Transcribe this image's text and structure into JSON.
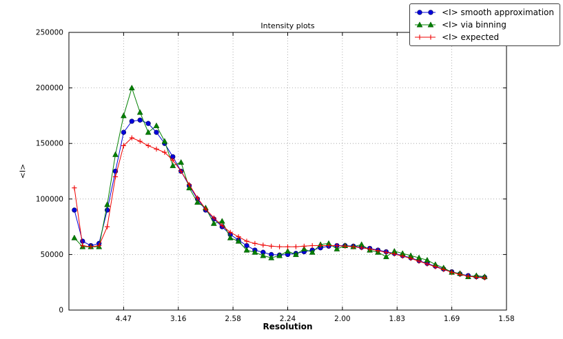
{
  "figure": {
    "background": "#ffffff",
    "frame_color": "#000000",
    "grid_style": "dotted"
  },
  "chart_data": {
    "type": "line",
    "title": "Intensity plots",
    "xlabel": "Resolution",
    "ylabel": "<I>",
    "grid": "dotted",
    "legend_position": "top-right",
    "x_axis": {
      "note": "ticks evenly spaced in 1/d^2; labels are resolution d values",
      "tick_labels": [
        "4.47",
        "3.16",
        "2.58",
        "2.24",
        "2.00",
        "1.83",
        "1.69",
        "1.58"
      ],
      "tick_positions": [
        0.05,
        0.1,
        0.15,
        0.2,
        0.25,
        0.3,
        0.35,
        0.4
      ],
      "range": [
        0,
        0.4
      ]
    },
    "y_axis": {
      "tick_labels": [
        "0",
        "50000",
        "100000",
        "150000",
        "200000",
        "250000"
      ],
      "tick_values": [
        0,
        50000,
        100000,
        150000,
        200000,
        250000
      ],
      "range": [
        0,
        250000
      ]
    },
    "x": [
      0.005,
      0.0125,
      0.02,
      0.0275,
      0.035,
      0.0425,
      0.05,
      0.0575,
      0.065,
      0.0725,
      0.08,
      0.0875,
      0.095,
      0.1025,
      0.11,
      0.1175,
      0.125,
      0.1325,
      0.14,
      0.1475,
      0.155,
      0.1625,
      0.17,
      0.1775,
      0.185,
      0.1925,
      0.2,
      0.2075,
      0.215,
      0.2225,
      0.23,
      0.2375,
      0.245,
      0.2525,
      0.26,
      0.2675,
      0.275,
      0.2825,
      0.29,
      0.2975,
      0.305,
      0.3125,
      0.32,
      0.3275,
      0.335,
      0.3425,
      0.35,
      0.3575,
      0.365,
      0.3725,
      0.38
    ],
    "series": [
      {
        "name": "<I> smooth approximation",
        "color": "#0000dd",
        "marker": "circle",
        "values": [
          90000,
          62000,
          58000,
          60000,
          90000,
          125000,
          160000,
          170000,
          171000,
          168000,
          160000,
          150000,
          138000,
          125000,
          112000,
          100000,
          90000,
          82000,
          75000,
          68000,
          63000,
          58000,
          54000,
          52000,
          50000,
          49500,
          50000,
          51000,
          52500,
          54000,
          56000,
          57500,
          58000,
          58000,
          57500,
          56500,
          55500,
          54000,
          52500,
          51000,
          49000,
          47000,
          44500,
          42000,
          39500,
          37000,
          34500,
          32500,
          31000,
          30000,
          29500
        ]
      },
      {
        "name": "<I> via binning",
        "color": "#008000",
        "marker": "triangle",
        "values": [
          65000,
          57000,
          57000,
          57000,
          95000,
          140000,
          175000,
          200000,
          178000,
          160000,
          166000,
          152000,
          130000,
          133000,
          110000,
          97000,
          92000,
          78000,
          80000,
          65000,
          62000,
          54000,
          52000,
          49000,
          47000,
          49000,
          53000,
          50000,
          55000,
          52000,
          59000,
          60000,
          55000,
          58000,
          57000,
          59000,
          54000,
          52000,
          48000,
          53000,
          51000,
          49000,
          47000,
          45000,
          41000,
          38000,
          34000,
          33000,
          30000,
          31000,
          30000
        ]
      },
      {
        "name": "<I> expected",
        "color": "#ee0000",
        "marker": "plus",
        "values": [
          110000,
          58000,
          57000,
          58000,
          75000,
          120000,
          148000,
          155000,
          152000,
          148000,
          145000,
          142000,
          135000,
          125000,
          113000,
          101000,
          91000,
          83000,
          76000,
          70000,
          66000,
          62000,
          60000,
          58500,
          57500,
          57000,
          57000,
          57000,
          57500,
          58000,
          58000,
          58000,
          58000,
          57500,
          57000,
          56000,
          55000,
          53500,
          52000,
          50500,
          48500,
          46500,
          44000,
          41500,
          39000,
          36500,
          34000,
          32000,
          30500,
          29500,
          29000
        ]
      }
    ]
  }
}
